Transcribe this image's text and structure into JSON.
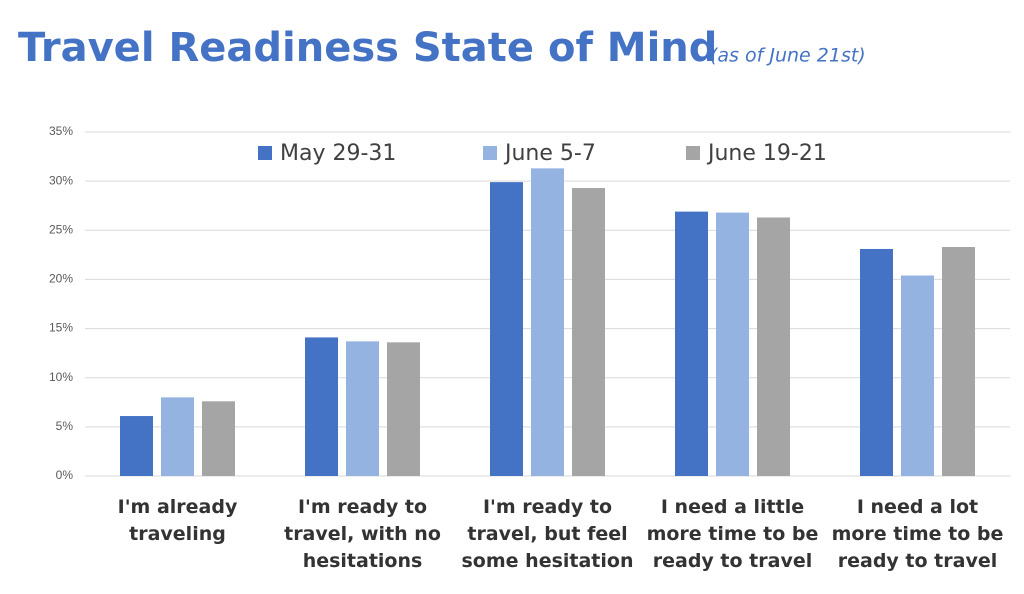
{
  "chart_data": {
    "type": "bar",
    "title": "Travel Readiness State of Mind",
    "subtitle": "(as of June 21st)",
    "categories": [
      [
        "I'm already",
        "traveling"
      ],
      [
        "I'm ready to",
        "travel, with no",
        "hesitations"
      ],
      [
        "I'm ready to",
        "travel, but feel",
        "some hesitation"
      ],
      [
        "I need a little",
        "more time to be",
        "ready to travel"
      ],
      [
        "I need a lot",
        "more time to be",
        "ready to travel"
      ]
    ],
    "series": [
      {
        "name": "May 29-31",
        "color": "#4472c4",
        "values": [
          6.1,
          14.1,
          29.9,
          26.9,
          23.1
        ]
      },
      {
        "name": "June 5-7",
        "color": "#94b3e0",
        "values": [
          8.0,
          13.7,
          31.3,
          26.8,
          20.4
        ]
      },
      {
        "name": "June 19-21",
        "color": "#a5a5a5",
        "values": [
          7.6,
          13.6,
          29.3,
          26.3,
          23.3
        ]
      }
    ],
    "ylim": [
      0,
      35
    ],
    "yticks": [
      {
        "value": 0,
        "label": "0%"
      },
      {
        "value": 5,
        "label": "5%"
      },
      {
        "value": 10,
        "label": "10%"
      },
      {
        "value": 15,
        "label": "15%"
      },
      {
        "value": 20,
        "label": "20%"
      },
      {
        "value": 25,
        "label": "25%"
      },
      {
        "value": 30,
        "label": "30%"
      },
      {
        "value": 35,
        "label": "35%"
      }
    ],
    "grid": true,
    "legend": "top"
  }
}
